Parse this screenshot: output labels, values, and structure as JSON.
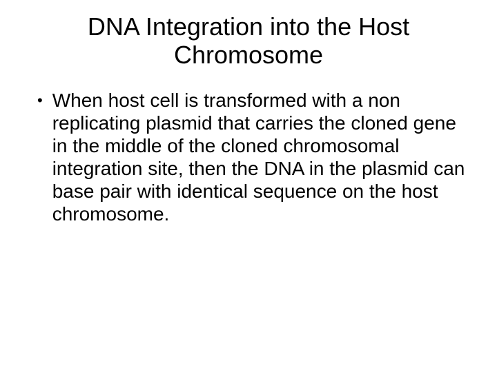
{
  "slide": {
    "title": "DNA Integration into the Host Chromosome",
    "bullets": [
      {
        "marker": "•",
        "text": "When host cell is transformed with a non replicating plasmid that carries the cloned gene in the middle of the cloned chromosomal integration site, then the DNA in the plasmid can base pair with identical sequence on the host chromosome."
      }
    ],
    "background_color": "#ffffff",
    "text_color": "#000000",
    "title_fontsize": 36,
    "body_fontsize": 28
  }
}
